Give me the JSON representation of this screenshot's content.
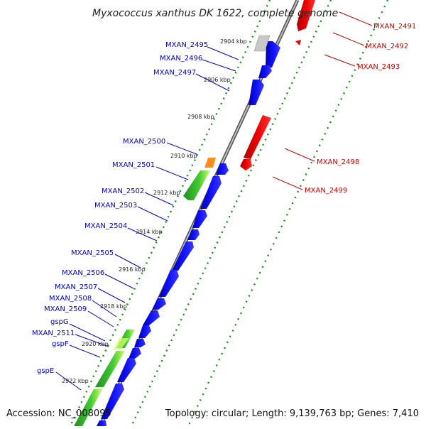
{
  "title": "Myxococcus xanthus DK 1622, complete genome",
  "footer": {
    "accession": "Accession: NC_008095",
    "summary": "Topology: circular; Length: 9,139,763 bp; Genes: 7,410"
  },
  "colors": {
    "forward_cds": "#0000ee",
    "reverse_cds": "#ee0000",
    "rna": "#ff8c1a",
    "secretion": "#33bb22",
    "pseudo": "#c8c8c8",
    "backbone": "#888888",
    "gc_ticks": "#228822"
  },
  "kbp_marks": [
    "2904 kbp",
    "2906 kbp",
    "2908 kbp",
    "2910 kbp",
    "2912 kbp",
    "2914 kbp",
    "2916 kbp",
    "2918 kbp",
    "2920 kbp",
    "2922 kbp"
  ],
  "left_labels": [
    "MXAN_2495",
    "MXAN_2496",
    "MXAN_2497",
    "MXAN_2500",
    "MXAN_2501",
    "MXAN_2502",
    "MXAN_2503",
    "MXAN_2504",
    "MXAN_2505",
    "MXAN_2506",
    "MXAN_2507",
    "MXAN_2508",
    "MXAN_2509",
    "gspG",
    "MXAN_2511",
    "gspF",
    "gspE"
  ],
  "right_labels": [
    "MXAN_2491",
    "MXAN_2492",
    "MXAN_2493",
    "MXAN_2498",
    "MXAN_2499"
  ]
}
